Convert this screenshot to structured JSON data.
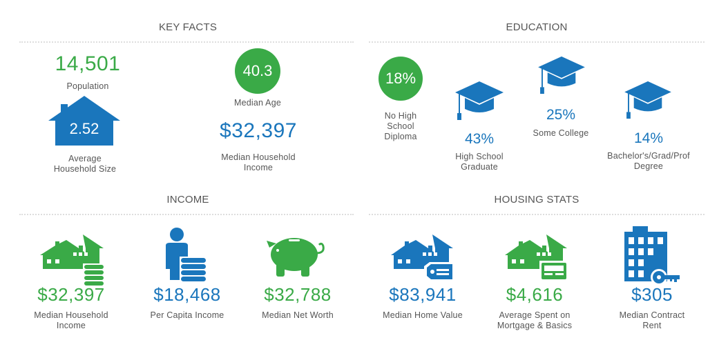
{
  "colors": {
    "green": "#3aaa47",
    "blue": "#1a76bc",
    "text": "#555555"
  },
  "key_facts": {
    "title": "KEY FACTS",
    "population": {
      "value": "14,501",
      "label": "Population"
    },
    "household_size": {
      "value": "2.52",
      "label_line1": "Average",
      "label_line2": "Household Size",
      "icon": "house-icon"
    },
    "median_age": {
      "value": "40.3",
      "label": "Median Age"
    },
    "median_income": {
      "value": "$32,397",
      "label_line1": "Median Household",
      "label_line2": "Income"
    }
  },
  "education": {
    "title": "EDUCATION",
    "no_diploma": {
      "value": "18%",
      "label_line1": "No High",
      "label_line2": "School",
      "label_line3": "Diploma"
    },
    "hs_graduate": {
      "value": "43%",
      "label_line1": "High School",
      "label_line2": "Graduate",
      "icon": "graduation-cap-icon"
    },
    "some_college": {
      "value": "25%",
      "label": "Some College",
      "icon": "graduation-cap-icon"
    },
    "bachelors": {
      "value": "14%",
      "label_line1": "Bachelor's/Grad/Prof",
      "label_line2": "Degree",
      "icon": "graduation-cap-icon"
    }
  },
  "income": {
    "title": "INCOME",
    "median_household": {
      "value": "$32,397",
      "label_line1": "Median Household",
      "label_line2": "Income",
      "icon": "house-coins-icon"
    },
    "per_capita": {
      "value": "$18,468",
      "label": "Per Capita Income",
      "icon": "person-coins-icon"
    },
    "net_worth": {
      "value": "$32,788",
      "label": "Median Net Worth",
      "icon": "piggy-bank-icon"
    }
  },
  "housing": {
    "title": "HOUSING STATS",
    "home_value": {
      "value": "$83,941",
      "label": "Median Home Value",
      "icon": "house-tag-icon"
    },
    "mortgage": {
      "value": "$4,616",
      "label_line1": "Average Spent on",
      "label_line2": "Mortgage & Basics",
      "icon": "house-card-icon"
    },
    "rent": {
      "value": "$305",
      "label_line1": "Median Contract",
      "label_line2": "Rent",
      "icon": "building-key-icon"
    }
  }
}
